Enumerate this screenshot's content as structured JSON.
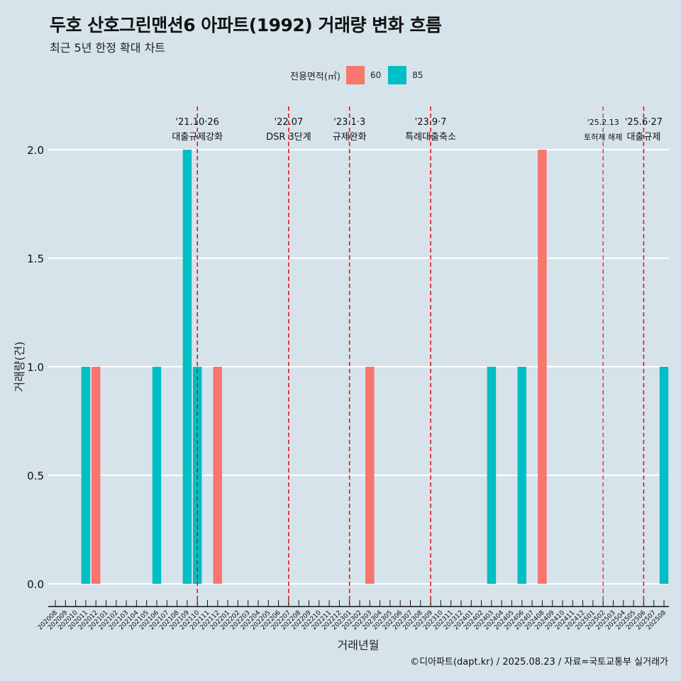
{
  "chart_data": {
    "type": "bar",
    "title": "두호 산호그린맨션6 아파트(1992) 거래량 변화 흐름",
    "subtitle": "최근 5년 한정 확대 차트",
    "xlabel": "거래년월",
    "ylabel": "거래량(건)",
    "ylim": [
      0,
      2
    ],
    "yticks": [
      "0.0",
      "0.5",
      "1.0",
      "1.5",
      "2.0"
    ],
    "grid": true,
    "legend_position": "top",
    "legend_title": "전용면적(㎡)",
    "categories": [
      "202008",
      "202009",
      "202010",
      "202011",
      "202012",
      "202101",
      "202102",
      "202103",
      "202104",
      "202105",
      "202106",
      "202107",
      "202108",
      "202109",
      "202110",
      "202111",
      "202112",
      "202201",
      "202202",
      "202203",
      "202204",
      "202205",
      "202206",
      "202207",
      "202208",
      "202209",
      "202210",
      "202211",
      "202212",
      "202301",
      "202302",
      "202303",
      "202304",
      "202305",
      "202306",
      "202307",
      "202308",
      "202309",
      "202310",
      "202311",
      "202312",
      "202401",
      "202402",
      "202403",
      "202404",
      "202405",
      "202406",
      "202407",
      "202408",
      "202409",
      "202410",
      "202411",
      "202412",
      "202501",
      "202502",
      "202503",
      "202504",
      "202505",
      "202506",
      "202507",
      "202508"
    ],
    "series": [
      {
        "name": "60",
        "color": "#f8766d",
        "points": [
          [
            "202012",
            1
          ],
          [
            "202112",
            1
          ],
          [
            "202303",
            1
          ],
          [
            "202408",
            2
          ]
        ]
      },
      {
        "name": "85",
        "color": "#00bfc4",
        "points": [
          [
            "202011",
            1
          ],
          [
            "202106",
            1
          ],
          [
            "202109",
            2
          ],
          [
            "202110",
            1
          ],
          [
            "202403",
            1
          ],
          [
            "202406",
            1
          ],
          [
            "202508",
            1
          ]
        ]
      }
    ],
    "annotations": [
      {
        "at": "202110",
        "line1": "'21.10·26",
        "line2": "대출규제강화"
      },
      {
        "at": "202207",
        "line1": "'22.07",
        "line2": "DSR 3단계"
      },
      {
        "at": "202301",
        "line1": "'23.1·3",
        "line2": "규제완화"
      },
      {
        "at": "202309",
        "line1": "'23.9·7",
        "line2": "특례대출축소"
      },
      {
        "at": "202502",
        "line1": "'25.2.13",
        "line2": "토허제 해제",
        "small": true
      },
      {
        "at": "202506",
        "line1": "'25.6·27",
        "line2": "대출규제"
      }
    ],
    "caption": "©디아파트(dapt.kr) / 2025.08.23 / 자료=국토교통부 실거래가"
  }
}
